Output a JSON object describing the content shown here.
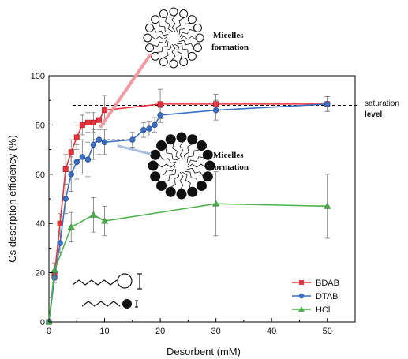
{
  "chart_data": {
    "type": "line",
    "xlabel": "Desorbent (mM)",
    "ylabel": "Cs desorption efficiency (%)",
    "xlim": [
      0,
      55
    ],
    "ylim": [
      0,
      100
    ],
    "x_ticks": [
      0,
      10,
      20,
      30,
      40,
      50
    ],
    "y_ticks": [
      0,
      20,
      40,
      60,
      80,
      100
    ],
    "legend_position": "bottom-right",
    "series": [
      {
        "name": "BDAB",
        "color": "#e8323c",
        "marker": "square",
        "points": [
          [
            0,
            0
          ],
          [
            1,
            19
          ],
          [
            2,
            40
          ],
          [
            3,
            62
          ],
          [
            4,
            69
          ],
          [
            5,
            75
          ],
          [
            6,
            80
          ],
          [
            7,
            81
          ],
          [
            8,
            81
          ],
          [
            9,
            82
          ],
          [
            10,
            86
          ],
          [
            20,
            88.5
          ],
          [
            30,
            88.5
          ],
          [
            50,
            88.5
          ]
        ],
        "errors": [
          0,
          2,
          4,
          6,
          5,
          5,
          4,
          4,
          4,
          4,
          6,
          6,
          4,
          3
        ]
      },
      {
        "name": "DTAB",
        "color": "#3a6fc4",
        "marker": "circle",
        "points": [
          [
            0,
            0
          ],
          [
            1,
            18
          ],
          [
            2,
            32
          ],
          [
            3,
            50
          ],
          [
            4,
            60
          ],
          [
            5,
            65
          ],
          [
            6,
            67
          ],
          [
            7,
            66
          ],
          [
            8,
            72
          ],
          [
            9,
            74
          ],
          [
            10,
            73
          ],
          [
            15,
            74
          ],
          [
            17,
            78
          ],
          [
            18,
            78.5
          ],
          [
            19,
            80
          ],
          [
            20,
            84
          ],
          [
            30,
            86
          ],
          [
            50,
            88.5
          ]
        ],
        "errors": [
          0,
          2,
          4,
          6,
          7,
          7,
          7,
          7,
          6,
          6,
          5,
          3,
          3,
          3,
          3,
          3,
          4,
          3
        ]
      },
      {
        "name": "HCl",
        "color": "#4bb04b",
        "marker": "triangle",
        "points": [
          [
            0,
            0
          ],
          [
            1,
            21
          ],
          [
            4,
            38.5
          ],
          [
            8,
            43.5
          ],
          [
            10,
            41
          ],
          [
            30,
            48
          ],
          [
            50,
            47
          ]
        ],
        "errors": [
          0,
          3,
          6,
          7,
          6,
          13,
          13
        ]
      }
    ],
    "reference_line": {
      "y": 88,
      "label_line1": "saturation",
      "label_line2": "level"
    },
    "annotations": [
      {
        "text_line1": "Micelles",
        "text_line2": "formation",
        "target": "BDAB"
      },
      {
        "text_line1": "Micelles",
        "text_line2": "formation",
        "target": "DTAB"
      }
    ]
  }
}
